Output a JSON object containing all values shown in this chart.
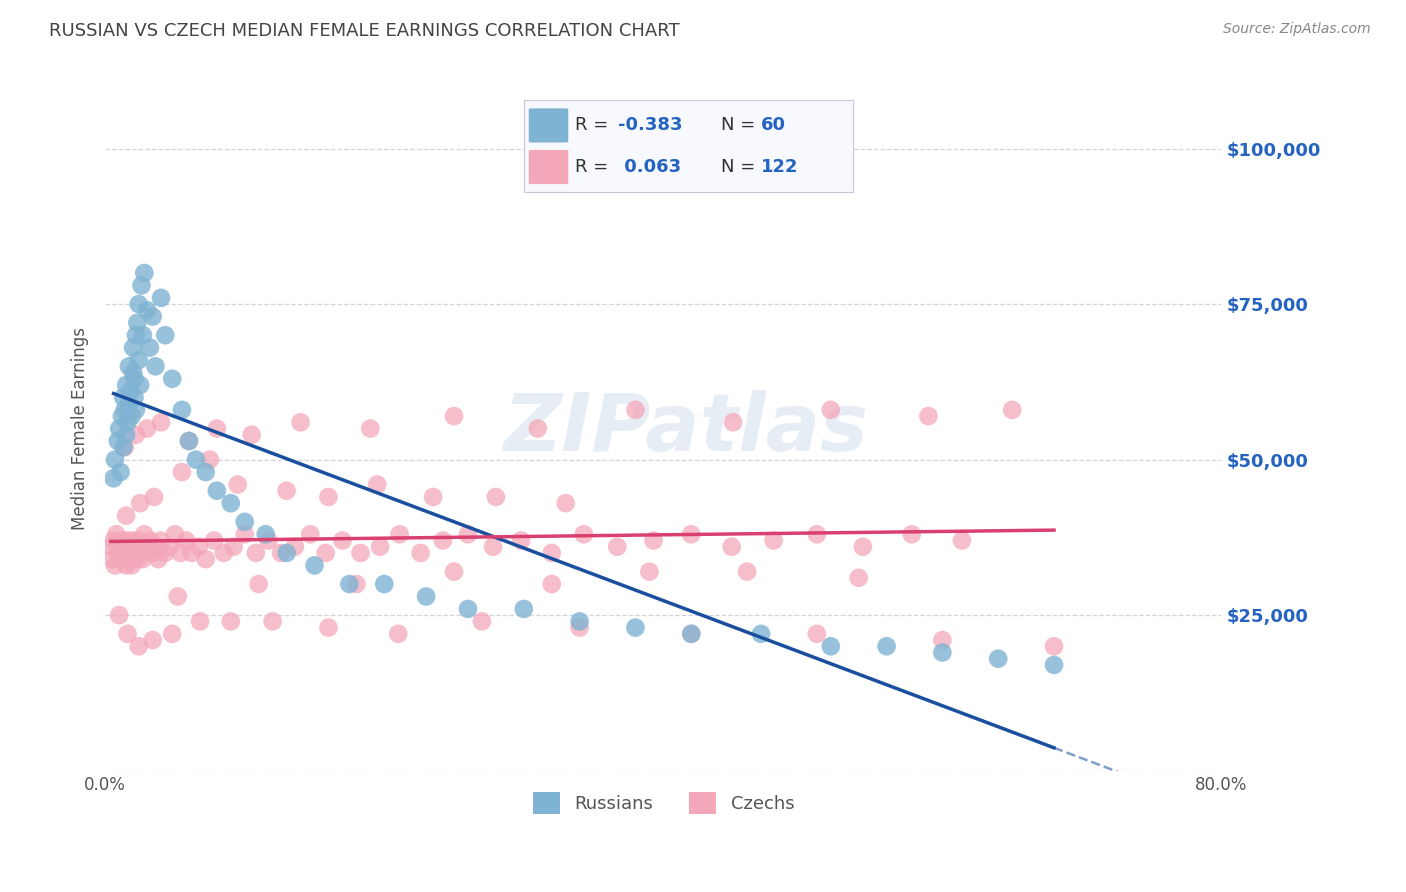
{
  "title": "RUSSIAN VS CZECH MEDIAN FEMALE EARNINGS CORRELATION CHART",
  "source": "Source: ZipAtlas.com",
  "ylabel": "Median Female Earnings",
  "xlim": [
    0.0,
    0.8
  ],
  "ylim": [
    0,
    110000
  ],
  "yticks": [
    0,
    25000,
    50000,
    75000,
    100000
  ],
  "ytick_labels": [
    "",
    "$25,000",
    "$50,000",
    "$75,000",
    "$100,000"
  ],
  "xticks": [
    0.0,
    0.1,
    0.2,
    0.3,
    0.4,
    0.5,
    0.6,
    0.7,
    0.8
  ],
  "xtick_labels": [
    "0.0%",
    "",
    "",
    "",
    "",
    "",
    "",
    "",
    "80.0%"
  ],
  "russian_color": "#7FB3D3",
  "czech_color": "#F4A7B9",
  "russian_R": "-0.383",
  "russian_N": "60",
  "czech_R": "0.063",
  "czech_N": "122",
  "russian_line_color": "#1a4fa0",
  "czech_line_color": "#d94070",
  "watermark_text": "ZIPatlas",
  "background_color": "#ffffff",
  "grid_color": "#c8c8d0",
  "title_color": "#444444",
  "right_tick_color": "#2563c0",
  "legend_text_color": "#2563c0",
  "legend_label_color": "#333333",
  "source_color": "#888888",
  "russians_x": [
    0.006,
    0.007,
    0.009,
    0.01,
    0.011,
    0.012,
    0.013,
    0.013,
    0.014,
    0.015,
    0.015,
    0.016,
    0.017,
    0.017,
    0.018,
    0.019,
    0.02,
    0.02,
    0.021,
    0.021,
    0.022,
    0.022,
    0.023,
    0.024,
    0.024,
    0.025,
    0.026,
    0.027,
    0.028,
    0.03,
    0.032,
    0.034,
    0.036,
    0.04,
    0.043,
    0.048,
    0.055,
    0.06,
    0.065,
    0.072,
    0.08,
    0.09,
    0.1,
    0.115,
    0.13,
    0.15,
    0.175,
    0.2,
    0.23,
    0.26,
    0.3,
    0.34,
    0.38,
    0.42,
    0.47,
    0.52,
    0.56,
    0.6,
    0.64,
    0.68
  ],
  "russians_y": [
    47000,
    50000,
    53000,
    55000,
    48000,
    57000,
    52000,
    60000,
    58000,
    54000,
    62000,
    56000,
    65000,
    59000,
    61000,
    57000,
    64000,
    68000,
    60000,
    63000,
    70000,
    58000,
    72000,
    66000,
    75000,
    62000,
    78000,
    70000,
    80000,
    74000,
    68000,
    73000,
    65000,
    76000,
    70000,
    63000,
    58000,
    53000,
    50000,
    48000,
    45000,
    43000,
    40000,
    38000,
    35000,
    33000,
    30000,
    30000,
    28000,
    26000,
    26000,
    24000,
    23000,
    22000,
    22000,
    20000,
    20000,
    19000,
    18000,
    17000
  ],
  "czechs_x": [
    0.004,
    0.005,
    0.006,
    0.007,
    0.008,
    0.009,
    0.01,
    0.011,
    0.012,
    0.013,
    0.014,
    0.015,
    0.016,
    0.017,
    0.018,
    0.019,
    0.02,
    0.021,
    0.022,
    0.023,
    0.024,
    0.025,
    0.026,
    0.027,
    0.028,
    0.029,
    0.03,
    0.032,
    0.034,
    0.036,
    0.038,
    0.04,
    0.043,
    0.046,
    0.05,
    0.054,
    0.058,
    0.062,
    0.067,
    0.072,
    0.078,
    0.085,
    0.092,
    0.1,
    0.108,
    0.117,
    0.126,
    0.136,
    0.147,
    0.158,
    0.17,
    0.183,
    0.197,
    0.211,
    0.226,
    0.242,
    0.26,
    0.278,
    0.298,
    0.32,
    0.343,
    0.367,
    0.393,
    0.42,
    0.449,
    0.479,
    0.51,
    0.543,
    0.578,
    0.614,
    0.052,
    0.11,
    0.18,
    0.25,
    0.32,
    0.39,
    0.46,
    0.54,
    0.015,
    0.025,
    0.035,
    0.055,
    0.075,
    0.095,
    0.13,
    0.16,
    0.195,
    0.235,
    0.28,
    0.33,
    0.014,
    0.022,
    0.03,
    0.04,
    0.06,
    0.08,
    0.105,
    0.14,
    0.19,
    0.25,
    0.31,
    0.38,
    0.45,
    0.52,
    0.59,
    0.65,
    0.01,
    0.016,
    0.024,
    0.034,
    0.048,
    0.068,
    0.09,
    0.12,
    0.16,
    0.21,
    0.27,
    0.34,
    0.42,
    0.51,
    0.6,
    0.68
  ],
  "czechs_y": [
    36000,
    34000,
    37000,
    33000,
    38000,
    35000,
    36000,
    34000,
    37000,
    35000,
    36000,
    33000,
    37000,
    34000,
    36000,
    33000,
    37000,
    35000,
    36000,
    34000,
    37000,
    35000,
    36000,
    34000,
    38000,
    35000,
    36000,
    37000,
    35000,
    36000,
    34000,
    37000,
    35000,
    36000,
    38000,
    35000,
    37000,
    35000,
    36000,
    34000,
    37000,
    35000,
    36000,
    38000,
    35000,
    37000,
    35000,
    36000,
    38000,
    35000,
    37000,
    35000,
    36000,
    38000,
    35000,
    37000,
    38000,
    36000,
    37000,
    35000,
    38000,
    36000,
    37000,
    38000,
    36000,
    37000,
    38000,
    36000,
    38000,
    37000,
    28000,
    30000,
    30000,
    32000,
    30000,
    32000,
    32000,
    31000,
    41000,
    43000,
    44000,
    48000,
    50000,
    46000,
    45000,
    44000,
    46000,
    44000,
    44000,
    43000,
    52000,
    54000,
    55000,
    56000,
    53000,
    55000,
    54000,
    56000,
    55000,
    57000,
    55000,
    58000,
    56000,
    58000,
    57000,
    58000,
    25000,
    22000,
    20000,
    21000,
    22000,
    24000,
    24000,
    24000,
    23000,
    22000,
    24000,
    23000,
    22000,
    22000,
    21000,
    20000
  ]
}
